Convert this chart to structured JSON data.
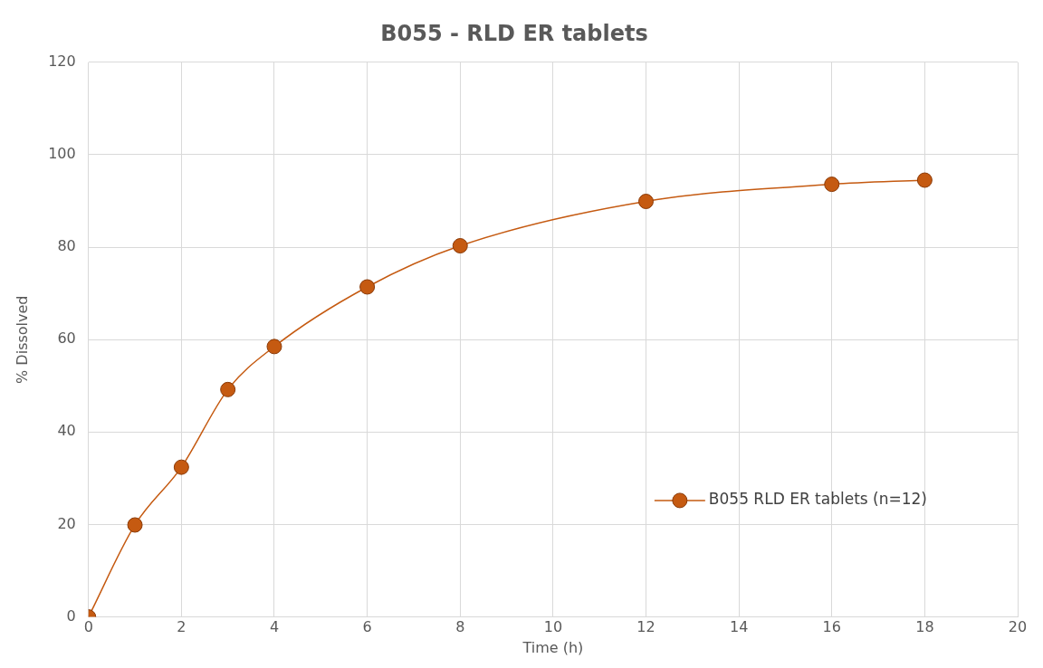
{
  "chart_data": {
    "type": "line",
    "title": "B055 - RLD ER tablets",
    "xlabel": "Time (h)",
    "ylabel": "% Dissolved",
    "x": [
      0,
      1,
      2,
      3,
      4,
      6,
      8,
      12,
      16,
      18
    ],
    "series": [
      {
        "name": "B055 RLD ER tablets (n=12)",
        "color": "#c55a11",
        "values": [
          0,
          19.9,
          32.4,
          49.2,
          58.5,
          71.4,
          80.3,
          89.9,
          93.6,
          94.5
        ]
      }
    ],
    "xlim": [
      0,
      20
    ],
    "xticks": [
      0,
      2,
      4,
      6,
      8,
      10,
      12,
      14,
      16,
      18,
      20
    ],
    "ylim": [
      0,
      120
    ],
    "yticks": [
      0,
      20,
      40,
      60,
      80,
      100,
      120
    ],
    "grid": true,
    "legend": "bottom right",
    "marker": "circle",
    "line_style": "solid"
  }
}
